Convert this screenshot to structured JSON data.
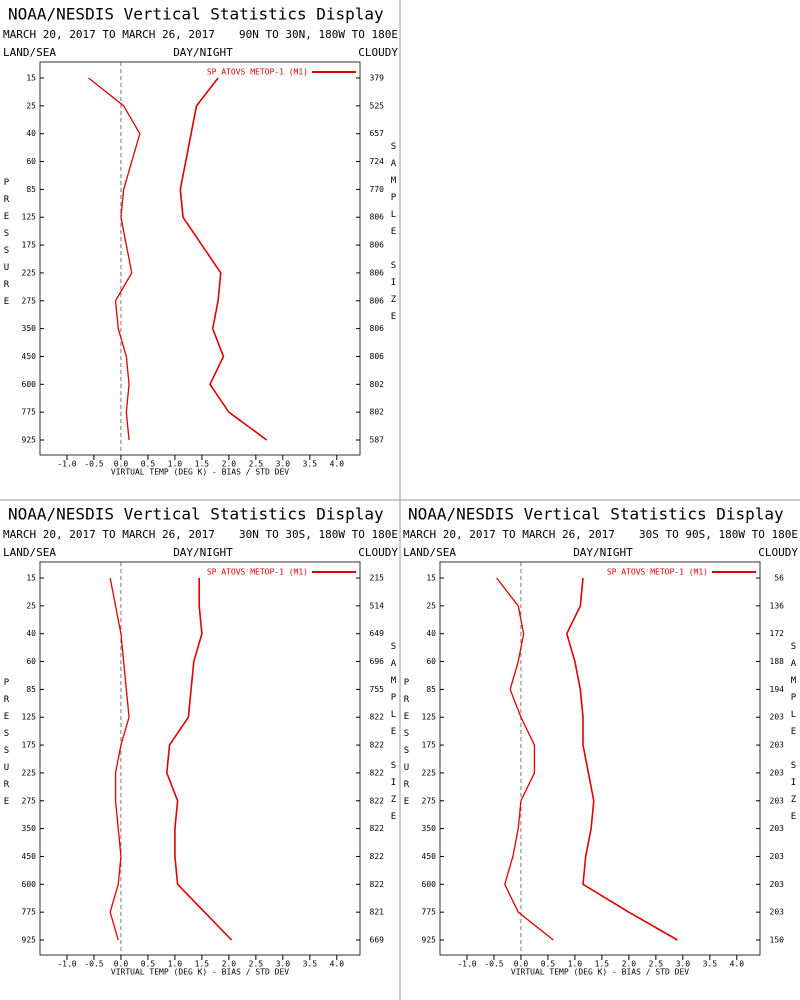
{
  "chart_data": [
    {
      "type": "line",
      "title": "NOAA/NESDIS Vertical Statistics Display",
      "date_range": "MARCH 20, 2017 TO MARCH 26, 2017",
      "region": "90N TO 30N, 180W TO 180E",
      "land_sea": "LAND/SEA",
      "day_night": "DAY/NIGHT",
      "cloudy": "CLOUDY",
      "y_label": "PRESSURE",
      "y2_label": "SAMPLE SIZE",
      "x_label": "VIRTUAL TEMP (DEG K) - BIAS / STD DEV",
      "categories": [
        15,
        25,
        40,
        60,
        85,
        125,
        175,
        225,
        275,
        350,
        450,
        600,
        775,
        925
      ],
      "xlim": [
        -1.5,
        4.43
      ],
      "xticks": [
        {
          "value": -1,
          "label": "-1.0"
        },
        -0.5,
        {
          "value": 0,
          "label": "0.0"
        },
        0.5,
        {
          "value": 1,
          "label": "1.0"
        },
        1.5,
        {
          "value": 2,
          "label": "2.0"
        },
        2.5,
        {
          "value": 3,
          "label": "3.0"
        },
        3.5,
        {
          "value": 4,
          "label": "4.0"
        }
      ],
      "series": [
        {
          "name": "SP ATOVS METOP-1 (M1)",
          "color": "#e00000",
          "bias": [
            -0.6,
            0.05,
            0.35,
            0.2,
            0.05,
            0.0,
            0.1,
            0.2,
            -0.1,
            -0.05,
            0.1,
            0.15,
            0.1,
            0.15
          ],
          "std_dev": [
            1.8,
            1.4,
            1.3,
            1.2,
            1.1,
            1.15,
            1.5,
            1.85,
            1.8,
            1.7,
            1.9,
            1.65,
            2.0,
            2.7
          ]
        }
      ],
      "sample_size": [
        379,
        525,
        657,
        724,
        770,
        806,
        806,
        806,
        806,
        806,
        806,
        802,
        802,
        587
      ]
    },
    {
      "type": "line",
      "title": "NOAA/NESDIS Vertical Statistics Display",
      "date_range": "MARCH 20, 2017 TO MARCH 26, 2017",
      "region": "30N TO 30S, 180W TO 180E",
      "land_sea": "LAND/SEA",
      "day_night": "DAY/NIGHT",
      "cloudy": "CLOUDY",
      "y_label": "PRESSURE",
      "y2_label": "SAMPLE SIZE",
      "x_label": "VIRTUAL TEMP (DEG K) - BIAS / STD DEV",
      "categories": [
        15,
        25,
        40,
        60,
        85,
        125,
        175,
        225,
        275,
        350,
        450,
        600,
        775,
        925
      ],
      "xlim": [
        -1.5,
        4.43
      ],
      "xticks": [
        {
          "value": -1,
          "label": "-1.0"
        },
        -0.5,
        {
          "value": 0,
          "label": "0.0"
        },
        0.5,
        {
          "value": 1,
          "label": "1.0"
        },
        1.5,
        {
          "value": 2,
          "label": "2.0"
        },
        2.5,
        {
          "value": 3,
          "label": "3.0"
        },
        3.5,
        {
          "value": 4,
          "label": "4.0"
        }
      ],
      "series": [
        {
          "name": "SP ATOVS METOP-1 (M1)",
          "color": "#e00000",
          "bias": [
            -0.2,
            -0.1,
            0.0,
            0.05,
            0.1,
            0.15,
            0.0,
            -0.1,
            -0.1,
            -0.05,
            0.0,
            -0.05,
            -0.2,
            -0.05
          ],
          "std_dev": [
            1.45,
            1.45,
            1.5,
            1.35,
            1.3,
            1.25,
            0.9,
            0.85,
            1.05,
            1.0,
            1.0,
            1.05,
            1.55,
            2.05
          ]
        }
      ],
      "sample_size": [
        215,
        514,
        649,
        696,
        755,
        822,
        822,
        822,
        822,
        822,
        822,
        822,
        821,
        669
      ]
    },
    {
      "type": "line",
      "title": "NOAA/NESDIS Vertical Statistics Display",
      "date_range": "MARCH 20, 2017 TO MARCH 26, 2017",
      "region": "30S TO 90S, 180W TO 180E",
      "land_sea": "LAND/SEA",
      "day_night": "DAY/NIGHT",
      "cloudy": "CLOUDY",
      "y_label": "PRESSURE",
      "y2_label": "SAMPLE SIZE",
      "x_label": "VIRTUAL TEMP (DEG K) - BIAS / STD DEV",
      "categories": [
        15,
        25,
        40,
        60,
        85,
        125,
        175,
        225,
        275,
        350,
        450,
        600,
        775,
        925
      ],
      "xlim": [
        -1.5,
        4.43
      ],
      "xticks": [
        {
          "value": -1,
          "label": "-1.0"
        },
        -0.5,
        {
          "value": 0,
          "label": "0.0"
        },
        0.5,
        {
          "value": 1,
          "label": "1.0"
        },
        1.5,
        {
          "value": 2,
          "label": "2.0"
        },
        2.5,
        {
          "value": 3,
          "label": "3.0"
        },
        3.5,
        {
          "value": 4,
          "label": "4.0"
        }
      ],
      "series": [
        {
          "name": "SP ATOVS METOP-1 (M1)",
          "color": "#e00000",
          "bias": [
            -0.45,
            -0.05,
            0.05,
            -0.05,
            -0.2,
            0.0,
            0.25,
            0.25,
            0.0,
            -0.05,
            -0.15,
            -0.3,
            -0.05,
            0.6
          ],
          "std_dev": [
            1.15,
            1.1,
            0.85,
            1.0,
            1.1,
            1.15,
            1.15,
            1.25,
            1.35,
            1.3,
            1.2,
            1.15,
            2.0,
            2.9
          ]
        }
      ],
      "sample_size": [
        56,
        136,
        172,
        188,
        194,
        203,
        203,
        203,
        203,
        203,
        203,
        203,
        203,
        150
      ]
    }
  ]
}
